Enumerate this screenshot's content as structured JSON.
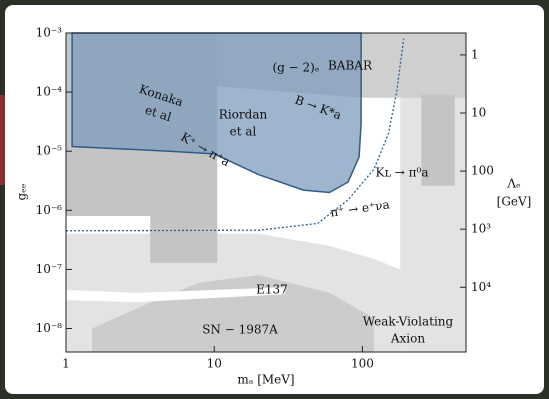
{
  "chart_data": {
    "type": "area",
    "xlabel": "mₐ [MeV]",
    "ylabel": "gₑₑ",
    "y2label": [
      "Λₑ",
      "[GeV]"
    ],
    "xscale": "log",
    "yscale": "log",
    "y2scale": "log",
    "xlim": [
      1,
      500
    ],
    "ylim": [
      4e-09,
      0.001
    ],
    "y2lim": [
      130000,
      0.42
    ],
    "xticks": [
      1,
      10,
      100
    ],
    "yticks": [
      {
        "value": 1e-08,
        "label": "10⁻⁸"
      },
      {
        "value": 1e-07,
        "label": "10⁻⁷"
      },
      {
        "value": 1e-06,
        "label": "10⁻⁶"
      },
      {
        "value": 1e-05,
        "label": "10⁻⁵"
      },
      {
        "value": 0.0001,
        "label": "10⁻⁴"
      },
      {
        "value": 0.001,
        "label": "10⁻³"
      }
    ],
    "y2ticks": [
      1,
      10,
      100,
      {
        "value": 1000,
        "label": "10³"
      },
      {
        "value": 10000,
        "label": "10⁴"
      }
    ],
    "series": [
      {
        "color": "#e3e3e3",
        "x": [
          1,
          20,
          60,
          120,
          180,
          180,
          1
        ],
        "values": [
          4e-07,
          4e-07,
          2.5e-07,
          1.5e-07,
          1e-07,
          4e-09,
          4e-09
        ]
      },
      {
        "color": "#e3e3e3",
        "x": [
          180,
          500,
          500,
          180
        ],
        "values": [
          0.001,
          0.001,
          4e-09,
          4e-09
        ]
      },
      {
        "color": "#cfcfcf",
        "x": [
          1,
          500,
          500,
          100,
          1
        ],
        "values": [
          0.001,
          0.001,
          8e-05,
          8e-05,
          0.0002
        ]
      },
      {
        "color": "#c4c4c4",
        "x": [
          1,
          10.5,
          10.5,
          3.7,
          3.7,
          1
        ],
        "values": [
          0.001,
          0.001,
          1.3e-07,
          1.3e-07,
          8e-07,
          8e-07
        ]
      },
      {
        "color": "#c4c4c4",
        "x": [
          250,
          420,
          420,
          250
        ],
        "values": [
          9e-05,
          9e-05,
          2.6e-06,
          2.6e-06
        ]
      },
      {
        "color": "#cccccc",
        "x": [
          1.5,
          4,
          8,
          20,
          60,
          120,
          120,
          1.5
        ],
        "values": [
          1e-08,
          3e-08,
          6e-08,
          8e-08,
          4e-08,
          1.5e-08,
          4e-09,
          4e-09
        ]
      },
      {
        "color": "#ffffff",
        "x": [
          1,
          3,
          30,
          30,
          3,
          1
        ],
        "values": [
          4.5e-08,
          4e-08,
          5e-08,
          3.8e-08,
          2.8e-08,
          3e-08
        ]
      },
      {
        "color": "#7d9cbc",
        "opacity": 0.75,
        "stroke": "#2f5d8e",
        "x": [
          1.1,
          1.1,
          5,
          10,
          20,
          40,
          60,
          80,
          95,
          98,
          98
        ],
        "values": [
          0.001,
          1.2e-05,
          1e-05,
          9e-06,
          4e-06,
          2.2e-06,
          2e-06,
          3e-06,
          8e-06,
          3e-05,
          0.001
        ]
      },
      {
        "color": "#2f5d8e",
        "fill": false,
        "line_style": "dotted",
        "x": [
          1,
          20,
          50,
          80,
          120,
          150,
          170,
          190
        ],
        "values": [
          4.5e-07,
          4.6e-07,
          6e-07,
          1.5e-06,
          5e-06,
          2e-05,
          0.0001,
          0.0008
        ]
      }
    ],
    "annotations": [
      "(g − 2)ₑ",
      "BABAR",
      "Konaka",
      "et al",
      "Riordan",
      "et al",
      "B → K*a",
      "K⁺ → π⁺a",
      "Kʟ → π⁰a",
      "π⁺ → e⁺νa",
      "E137",
      "SN − 1987A",
      "Weak-Violating",
      "Axion"
    ]
  }
}
